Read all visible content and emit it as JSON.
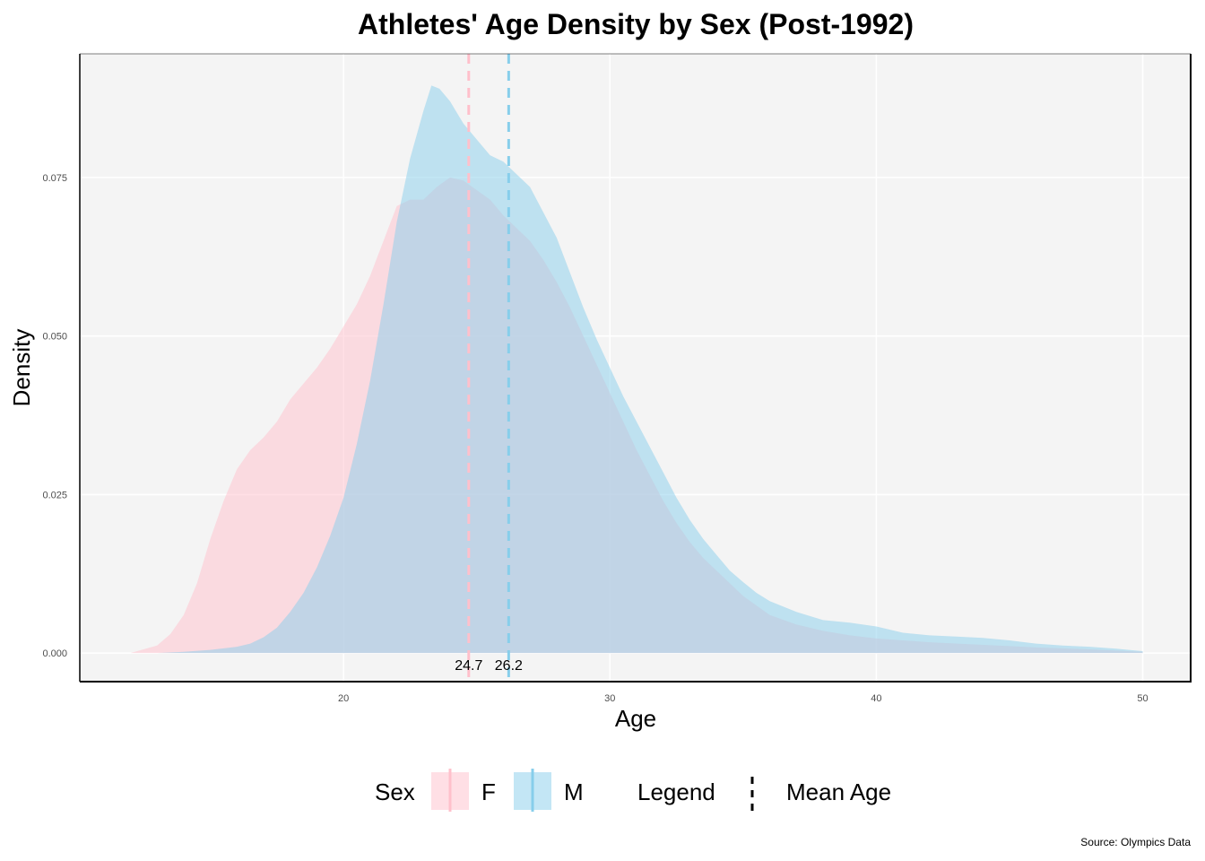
{
  "chart_data": {
    "type": "area",
    "title": "Athletes' Age Density by Sex (Post-1992)",
    "xlabel": "Age",
    "ylabel": "Density",
    "xlim": [
      10.1,
      51.8
    ],
    "ylim": [
      -0.0045,
      0.0945
    ],
    "x_ticks": [
      20,
      30,
      40,
      50
    ],
    "x_tick_labels": [
      "20",
      "30",
      "40",
      "50"
    ],
    "y_ticks": [
      0,
      0.025,
      0.05,
      0.075
    ],
    "y_tick_labels": [
      "0.000",
      "0.025",
      "0.050",
      "0.075"
    ],
    "grid": true,
    "legend_position": "bottom",
    "caption": "Source: Olympics Data",
    "series": [
      {
        "name": "F",
        "color": "#FFC0CB",
        "points": [
          [
            12.0,
            0.0
          ],
          [
            13.0,
            0.0012
          ],
          [
            13.5,
            0.003
          ],
          [
            14.0,
            0.006
          ],
          [
            14.5,
            0.011
          ],
          [
            15.0,
            0.018
          ],
          [
            15.5,
            0.024
          ],
          [
            16.0,
            0.029
          ],
          [
            16.5,
            0.032
          ],
          [
            17.0,
            0.034
          ],
          [
            17.5,
            0.0365
          ],
          [
            18.0,
            0.04
          ],
          [
            18.5,
            0.0425
          ],
          [
            19.0,
            0.045
          ],
          [
            19.5,
            0.048
          ],
          [
            20.0,
            0.0515
          ],
          [
            20.5,
            0.055
          ],
          [
            21.0,
            0.0595
          ],
          [
            21.5,
            0.065
          ],
          [
            22.0,
            0.0705
          ],
          [
            22.5,
            0.0715
          ],
          [
            23.0,
            0.0715
          ],
          [
            23.5,
            0.0735
          ],
          [
            24.0,
            0.075
          ],
          [
            24.5,
            0.0745
          ],
          [
            25.0,
            0.073
          ],
          [
            25.5,
            0.0715
          ],
          [
            26.0,
            0.069
          ],
          [
            26.5,
            0.067
          ],
          [
            27.0,
            0.065
          ],
          [
            27.5,
            0.062
          ],
          [
            28.0,
            0.0585
          ],
          [
            28.5,
            0.0545
          ],
          [
            29.0,
            0.05
          ],
          [
            29.5,
            0.0455
          ],
          [
            30.0,
            0.041
          ],
          [
            30.5,
            0.0365
          ],
          [
            31.0,
            0.032
          ],
          [
            31.5,
            0.028
          ],
          [
            32.0,
            0.024
          ],
          [
            32.5,
            0.0205
          ],
          [
            33.0,
            0.0175
          ],
          [
            33.5,
            0.015
          ],
          [
            34.0,
            0.013
          ],
          [
            34.5,
            0.011
          ],
          [
            35.0,
            0.009
          ],
          [
            35.5,
            0.0075
          ],
          [
            36.0,
            0.006
          ],
          [
            37.0,
            0.0045
          ],
          [
            38.0,
            0.0035
          ],
          [
            39.0,
            0.0028
          ],
          [
            40.0,
            0.0023
          ],
          [
            42.0,
            0.0017
          ],
          [
            44.0,
            0.0013
          ],
          [
            46.0,
            0.0009
          ],
          [
            48.0,
            0.0006
          ],
          [
            50.0,
            0.0002
          ]
        ]
      },
      {
        "name": "M",
        "color": "#87CEEB",
        "points": [
          [
            13.0,
            0.0
          ],
          [
            14.0,
            0.0002
          ],
          [
            15.0,
            0.0005
          ],
          [
            16.0,
            0.001
          ],
          [
            16.5,
            0.0015
          ],
          [
            17.0,
            0.0025
          ],
          [
            17.5,
            0.004
          ],
          [
            18.0,
            0.0065
          ],
          [
            18.5,
            0.0095
          ],
          [
            19.0,
            0.0135
          ],
          [
            19.5,
            0.0185
          ],
          [
            20.0,
            0.0245
          ],
          [
            20.5,
            0.033
          ],
          [
            21.0,
            0.043
          ],
          [
            21.5,
            0.055
          ],
          [
            22.0,
            0.068
          ],
          [
            22.5,
            0.078
          ],
          [
            23.0,
            0.0855
          ],
          [
            23.3,
            0.0895
          ],
          [
            23.6,
            0.089
          ],
          [
            24.0,
            0.087
          ],
          [
            24.5,
            0.0835
          ],
          [
            25.0,
            0.081
          ],
          [
            25.5,
            0.0785
          ],
          [
            26.0,
            0.0775
          ],
          [
            26.5,
            0.0755
          ],
          [
            27.0,
            0.0735
          ],
          [
            27.5,
            0.0695
          ],
          [
            28.0,
            0.0655
          ],
          [
            28.5,
            0.06
          ],
          [
            29.0,
            0.0545
          ],
          [
            29.5,
            0.0495
          ],
          [
            30.0,
            0.045
          ],
          [
            30.5,
            0.0405
          ],
          [
            31.0,
            0.0365
          ],
          [
            31.5,
            0.0325
          ],
          [
            32.0,
            0.0285
          ],
          [
            32.5,
            0.0245
          ],
          [
            33.0,
            0.021
          ],
          [
            33.5,
            0.018
          ],
          [
            34.0,
            0.0155
          ],
          [
            34.5,
            0.013
          ],
          [
            35.0,
            0.0112
          ],
          [
            35.5,
            0.0095
          ],
          [
            36.0,
            0.0082
          ],
          [
            37.0,
            0.0065
          ],
          [
            38.0,
            0.0052
          ],
          [
            39.0,
            0.0048
          ],
          [
            40.0,
            0.0042
          ],
          [
            41.0,
            0.0032
          ],
          [
            42.0,
            0.0028
          ],
          [
            43.0,
            0.0026
          ],
          [
            44.0,
            0.0024
          ],
          [
            45.0,
            0.002
          ],
          [
            46.0,
            0.0015
          ],
          [
            47.0,
            0.0012
          ],
          [
            48.0,
            0.001
          ],
          [
            49.0,
            0.0007
          ],
          [
            50.0,
            0.0003
          ]
        ]
      }
    ],
    "mean_lines": [
      {
        "series": "F",
        "value": 24.7,
        "label": "24.7",
        "color": "#FFC0CB"
      },
      {
        "series": "M",
        "value": 26.2,
        "label": "26.2",
        "color": "#87CEEB"
      }
    ],
    "legend": {
      "fill_title": "Sex",
      "fill_items": [
        {
          "label": "F",
          "color": "#FFC0CB"
        },
        {
          "label": "M",
          "color": "#87CEEB"
        }
      ],
      "line_title": "Legend",
      "line_items": [
        {
          "label": "Mean Age",
          "style": "dashed",
          "color": "#000000"
        }
      ]
    }
  }
}
